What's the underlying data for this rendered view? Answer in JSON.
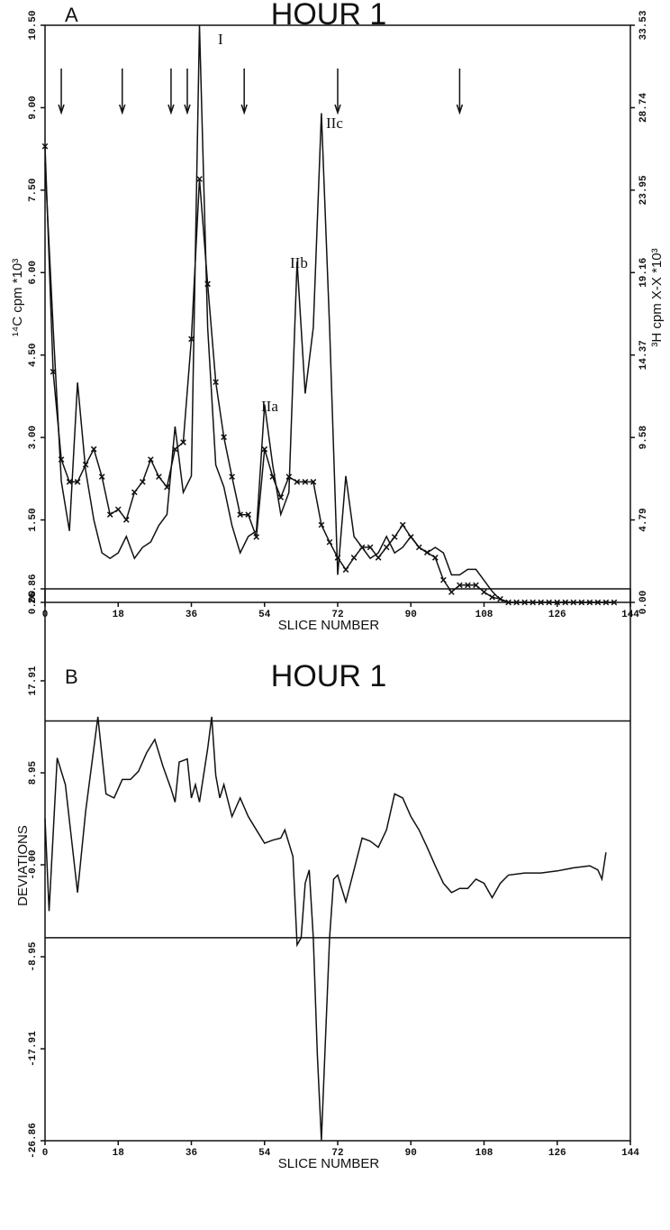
{
  "chart_data": [
    {
      "type": "line",
      "panel_label": "A",
      "title": "HOUR 1",
      "xlabel": "SLICE NUMBER",
      "ylabel": "¹⁴C cpm *10³",
      "y2label": "³H cpm X-X *10³",
      "xlim": [
        0,
        144
      ],
      "xticks": [
        0,
        18,
        36,
        54,
        72,
        90,
        108,
        126,
        144
      ],
      "ylim": [
        0,
        10.5
      ],
      "yticks": [
        {
          "value": 0,
          "label": "0.00"
        },
        {
          "value": 1.5,
          "label": "1.50"
        },
        {
          "value": 3,
          "label": "3.00"
        },
        {
          "value": 4.5,
          "label": "4.50"
        },
        {
          "value": 6,
          "label": "6.00"
        },
        {
          "value": 7.5,
          "label": "7.50"
        },
        {
          "value": 9,
          "label": "9.00"
        },
        {
          "value": 10.5,
          "label": "10.50"
        }
      ],
      "y2lim": [
        0,
        33.53
      ],
      "y2ticks": [
        {
          "value": 0,
          "label": "0.00"
        },
        4.79,
        9.58,
        14.37,
        19.16,
        23.95,
        28.74,
        33.53
      ],
      "x": [
        0,
        2,
        4,
        6,
        8,
        10,
        12,
        14,
        16,
        18,
        20,
        22,
        24,
        26,
        28,
        30,
        32,
        34,
        36,
        38,
        40,
        42,
        44,
        46,
        48,
        50,
        52,
        54,
        56,
        58,
        60,
        62,
        64,
        66,
        68,
        70,
        72,
        74,
        76,
        78,
        80,
        82,
        84,
        86,
        88,
        90,
        92,
        94,
        96,
        98,
        100,
        102,
        104,
        106,
        108,
        110,
        112,
        114,
        116,
        118,
        120,
        122,
        124,
        126,
        128,
        130,
        132,
        134,
        136,
        138,
        140
      ],
      "series": [
        {
          "color": "#111111",
          "marker": "none",
          "axis": "y",
          "values": [
            8.0,
            5.0,
            2.2,
            1.3,
            4.0,
            2.4,
            1.5,
            0.9,
            0.8,
            0.9,
            1.2,
            0.8,
            1.0,
            1.1,
            1.4,
            1.6,
            3.2,
            2.0,
            2.3,
            10.5,
            5.0,
            2.5,
            2.1,
            1.4,
            0.9,
            1.2,
            1.3,
            3.6,
            2.5,
            1.6,
            2.0,
            6.2,
            3.8,
            5.0,
            8.9,
            5.0,
            0.5,
            2.3,
            1.2,
            1.0,
            0.8,
            0.9,
            1.2,
            0.9,
            1.0,
            1.2,
            1.0,
            0.9,
            1.0,
            0.9,
            0.5,
            0.5,
            0.6,
            0.6,
            0.4,
            0.2,
            0.05,
            0,
            0,
            0,
            0,
            0,
            0,
            0,
            0,
            0,
            0,
            0,
            0,
            0,
            0
          ]
        },
        {
          "color": "#111111",
          "marker": "x",
          "axis": "y2",
          "values": [
            26.5,
            13.4,
            8.3,
            7.0,
            7.0,
            8.0,
            8.9,
            7.3,
            5.1,
            5.4,
            4.8,
            6.4,
            7.0,
            8.3,
            7.3,
            6.7,
            8.9,
            9.3,
            15.3,
            24.6,
            18.5,
            12.8,
            9.6,
            7.3,
            5.1,
            5.1,
            3.8,
            8.9,
            7.3,
            6.1,
            7.3,
            7.0,
            7.0,
            7.0,
            4.5,
            3.5,
            2.6,
            1.9,
            2.6,
            3.2,
            3.2,
            2.6,
            3.2,
            3.8,
            4.5,
            3.8,
            3.2,
            2.9,
            2.6,
            1.3,
            0.6,
            1.0,
            1.0,
            1.0,
            0.6,
            0.3,
            0.2,
            0,
            0,
            0,
            0,
            0,
            0,
            0,
            0,
            0,
            0,
            0,
            0,
            0,
            0
          ]
        }
      ],
      "arrows_x": [
        4,
        19,
        31,
        35,
        49,
        72,
        102
      ],
      "annotations": [
        "I",
        "IIa",
        "IIb",
        "IIc"
      ]
    },
    {
      "type": "line",
      "panel_label": "B",
      "title": "HOUR 1",
      "xlabel": "SLICE NUMBER",
      "ylabel": "DEVIATIONS",
      "xlim": [
        0,
        144
      ],
      "xticks": [
        0,
        18,
        36,
        54,
        72,
        90,
        108,
        126,
        144
      ],
      "ylim": [
        -26.86,
        26.86
      ],
      "yticks": [
        -26.86,
        -17.91,
        -8.95,
        {
          "value": 0,
          "label": "-0.00"
        },
        8.95,
        17.91,
        26.86
      ],
      "hlines": [
        14.0,
        -7.1
      ],
      "x": [
        0,
        1,
        3,
        5,
        8,
        10,
        13,
        15,
        17,
        19,
        21,
        23,
        25,
        27,
        29,
        31,
        32,
        33,
        35,
        36,
        37,
        38,
        40,
        41,
        42,
        43,
        44,
        46,
        48,
        50,
        52,
        54,
        56,
        58,
        59,
        61,
        62,
        63,
        64,
        65,
        66,
        67,
        68,
        69,
        70,
        71,
        72,
        74,
        76,
        78,
        80,
        82,
        84,
        86,
        88,
        90,
        92,
        94,
        96,
        98,
        100,
        102,
        104,
        106,
        108,
        110,
        112,
        114,
        118,
        122,
        126,
        130,
        134,
        136,
        137,
        138
      ],
      "series": [
        {
          "color": "#111111",
          "marker": "none",
          "axis": "y",
          "values": [
            4.5,
            -4.5,
            10.4,
            7.8,
            -2.7,
            5.2,
            14.4,
            6.9,
            6.5,
            8.3,
            8.3,
            9.1,
            10.9,
            12.2,
            9.6,
            7.4,
            6.1,
            10.0,
            10.3,
            6.5,
            7.8,
            6.1,
            11.3,
            14.4,
            8.7,
            6.5,
            7.8,
            4.7,
            6.5,
            4.7,
            3.4,
            2.1,
            2.4,
            2.6,
            3.4,
            0.8,
            -7.8,
            -7.1,
            -1.8,
            -0.5,
            -7.1,
            -18.5,
            -26.8,
            -16.8,
            -7.1,
            -1.4,
            -1.0,
            -3.6,
            -0.5,
            2.6,
            2.3,
            1.7,
            3.4,
            6.9,
            6.5,
            4.7,
            3.4,
            1.7,
            -0.1,
            -1.8,
            -2.7,
            -2.3,
            -2.3,
            -1.4,
            -1.8,
            -3.2,
            -1.8,
            -1.0,
            -0.8,
            -0.8,
            -0.6,
            -0.3,
            -0.1,
            -0.5,
            -1.4,
            1.2
          ]
        }
      ]
    }
  ]
}
